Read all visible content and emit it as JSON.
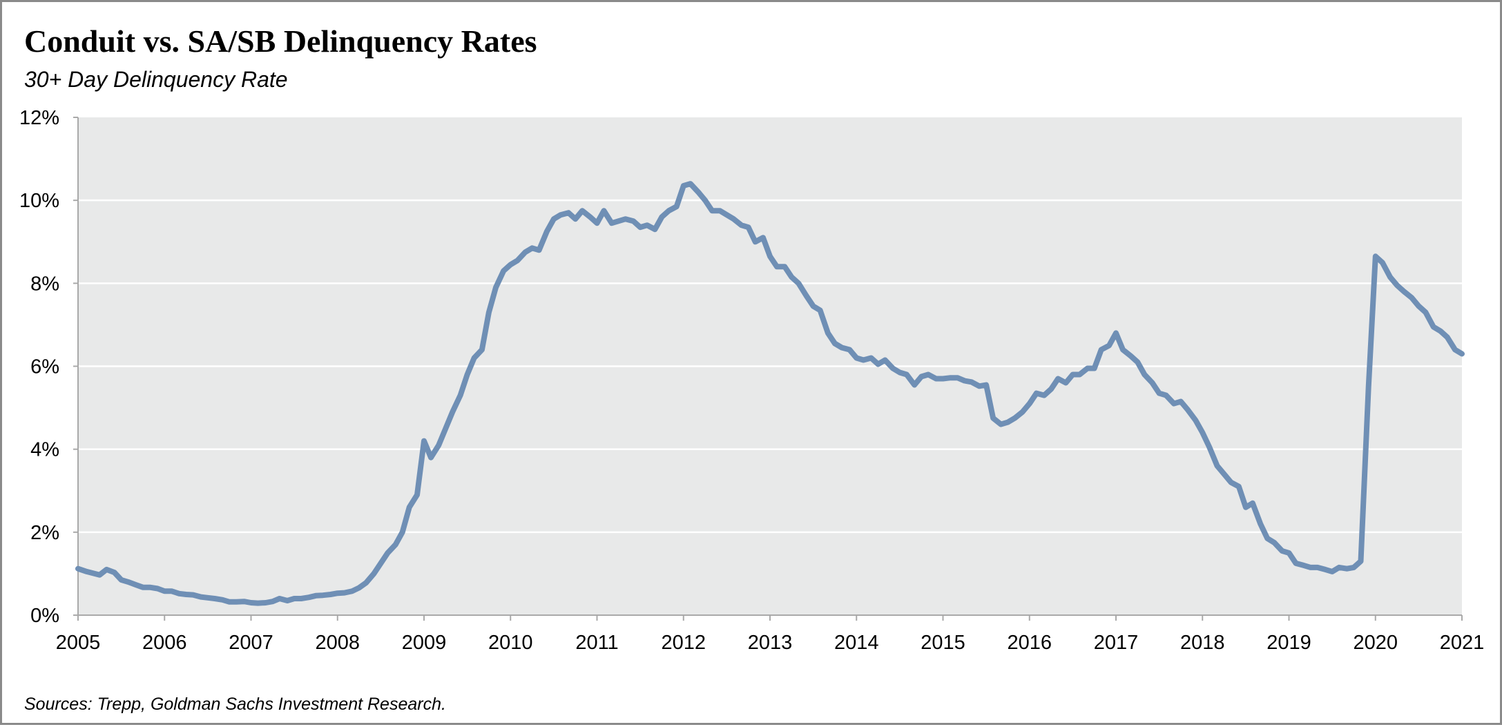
{
  "chart_data": {
    "type": "line",
    "title": "Conduit vs. SA/SB Delinquency Rates",
    "subtitle": "30+ Day Delinquency Rate",
    "source": "Sources: Trepp, Goldman Sachs Investment Research.",
    "xlabel": "",
    "ylabel": "",
    "xlim": [
      2005,
      2021
    ],
    "ylim": [
      0,
      12
    ],
    "x_ticks": [
      "2005",
      "2006",
      "2007",
      "2008",
      "2009",
      "2010",
      "2011",
      "2012",
      "2013",
      "2014",
      "2015",
      "2016",
      "2017",
      "2018",
      "2019",
      "2020",
      "2021"
    ],
    "y_ticks": [
      "0%",
      "2%",
      "4%",
      "6%",
      "8%",
      "10%",
      "12%"
    ],
    "grid": "horizontal",
    "background_color": "#e8e9e9",
    "line_color": "#6f8fb5",
    "series": [
      {
        "x": [
          2005.0,
          2005.1,
          2005.25,
          2005.33,
          2005.42,
          2005.5,
          2005.58,
          2005.67,
          2005.75,
          2005.83,
          2005.92,
          2006.0,
          2006.08,
          2006.17,
          2006.25,
          2006.33,
          2006.42,
          2006.5,
          2006.58,
          2006.67,
          2006.75,
          2006.83,
          2006.92,
          2007.0,
          2007.08,
          2007.17,
          2007.25,
          2007.33,
          2007.42,
          2007.5,
          2007.58,
          2007.67,
          2007.75,
          2007.83,
          2007.92,
          2008.0,
          2008.08,
          2008.17,
          2008.25,
          2008.33,
          2008.42,
          2008.5,
          2008.58,
          2008.67,
          2008.75,
          2008.83,
          2008.92,
          2009.0,
          2009.08,
          2009.17,
          2009.25,
          2009.33,
          2009.42,
          2009.5,
          2009.58,
          2009.67,
          2009.75,
          2009.83,
          2009.92,
          2010.0,
          2010.08,
          2010.17,
          2010.25,
          2010.33,
          2010.42,
          2010.5,
          2010.58,
          2010.67,
          2010.75,
          2010.83,
          2010.92,
          2011.0,
          2011.08,
          2011.17,
          2011.25,
          2011.33,
          2011.42,
          2011.5,
          2011.58,
          2011.67,
          2011.75,
          2011.83,
          2011.92,
          2012.0,
          2012.08,
          2012.17,
          2012.25,
          2012.33,
          2012.42,
          2012.5,
          2012.58,
          2012.67,
          2012.75,
          2012.83,
          2012.92,
          2013.0,
          2013.08,
          2013.17,
          2013.25,
          2013.33,
          2013.42,
          2013.5,
          2013.58,
          2013.67,
          2013.75,
          2013.83,
          2013.92,
          2014.0,
          2014.08,
          2014.17,
          2014.25,
          2014.33,
          2014.42,
          2014.5,
          2014.58,
          2014.67,
          2014.75,
          2014.83,
          2014.92,
          2015.0,
          2015.08,
          2015.17,
          2015.25,
          2015.33,
          2015.42,
          2015.5,
          2015.58,
          2015.67,
          2015.75,
          2015.83,
          2015.92,
          2016.0,
          2016.08,
          2016.17,
          2016.25,
          2016.33,
          2016.42,
          2016.5,
          2016.58,
          2016.67,
          2016.75,
          2016.83,
          2016.92,
          2017.0,
          2017.08,
          2017.17,
          2017.25,
          2017.33,
          2017.42,
          2017.5,
          2017.58,
          2017.67,
          2017.75,
          2017.83,
          2017.92,
          2018.0,
          2018.08,
          2018.17,
          2018.25,
          2018.33,
          2018.42,
          2018.5,
          2018.58,
          2018.67,
          2018.75,
          2018.83,
          2018.92,
          2019.0,
          2019.08,
          2019.17,
          2019.25,
          2019.33,
          2019.42,
          2019.5,
          2019.58,
          2019.67,
          2019.75,
          2019.83,
          2019.92,
          2020.0,
          2020.08,
          2020.17,
          2020.25,
          2020.33,
          2020.42,
          2020.5,
          2020.58,
          2020.67,
          2020.75,
          2020.83,
          2020.92,
          2021.0
        ],
        "y": [
          1.12,
          1.05,
          0.97,
          1.1,
          1.03,
          0.85,
          0.8,
          0.73,
          0.67,
          0.67,
          0.64,
          0.58,
          0.58,
          0.52,
          0.5,
          0.49,
          0.44,
          0.42,
          0.4,
          0.37,
          0.32,
          0.32,
          0.33,
          0.3,
          0.29,
          0.3,
          0.33,
          0.4,
          0.35,
          0.4,
          0.4,
          0.43,
          0.47,
          0.48,
          0.5,
          0.53,
          0.54,
          0.58,
          0.66,
          0.78,
          1.0,
          1.25,
          1.5,
          1.7,
          2.0,
          2.6,
          2.9,
          4.2,
          3.8,
          4.1,
          4.5,
          4.9,
          5.3,
          5.8,
          6.2,
          6.4,
          7.3,
          7.9,
          8.3,
          8.45,
          8.55,
          8.75,
          8.85,
          8.8,
          9.25,
          9.55,
          9.65,
          9.7,
          9.55,
          9.75,
          9.6,
          9.45,
          9.75,
          9.45,
          9.5,
          9.55,
          9.5,
          9.35,
          9.4,
          9.3,
          9.6,
          9.75,
          9.85,
          10.35,
          10.4,
          10.2,
          10.0,
          9.75,
          9.75,
          9.65,
          9.55,
          9.4,
          9.35,
          9.0,
          9.1,
          8.65,
          8.4,
          8.4,
          8.15,
          8.0,
          7.7,
          7.45,
          7.35,
          6.8,
          6.55,
          6.45,
          6.4,
          6.2,
          6.15,
          6.2,
          6.05,
          6.15,
          5.95,
          5.85,
          5.8,
          5.55,
          5.75,
          5.8,
          5.7,
          5.7,
          5.72,
          5.72,
          5.65,
          5.62,
          5.52,
          5.55,
          4.75,
          4.6,
          4.65,
          4.75,
          4.9,
          5.1,
          5.35,
          5.3,
          5.45,
          5.7,
          5.6,
          5.8,
          5.8,
          5.95,
          5.95,
          6.4,
          6.5,
          6.8,
          6.4,
          6.25,
          6.1,
          5.8,
          5.6,
          5.35,
          5.3,
          5.1,
          5.15,
          4.95,
          4.7,
          4.4,
          4.05,
          3.6,
          3.4,
          3.2,
          3.1,
          2.6,
          2.7,
          2.2,
          1.85,
          1.75,
          1.55,
          1.5,
          1.25,
          1.2,
          1.15,
          1.15,
          1.1,
          1.05,
          1.15,
          1.12,
          1.15,
          1.3,
          5.5,
          8.65,
          8.5,
          8.15,
          7.95,
          7.8,
          7.65,
          7.45,
          7.3,
          6.95,
          6.85,
          6.7,
          6.4,
          6.3
        ]
      }
    ]
  }
}
